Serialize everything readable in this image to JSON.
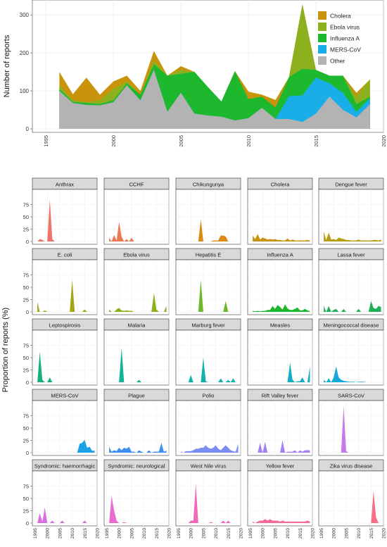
{
  "top_chart": {
    "ylabel": "Number of reports",
    "y_ticks": [
      0,
      100,
      200,
      300
    ],
    "x_ticks": [
      1995,
      2000,
      2005,
      2010,
      2015,
      2020
    ],
    "legend": [
      {
        "name": "Cholera",
        "color": "#C9940C"
      },
      {
        "name": "Ebola virus",
        "color": "#8DB01E"
      },
      {
        "name": "Influenza A",
        "color": "#1DB82E"
      },
      {
        "name": "MERS-CoV",
        "color": "#1AAEE8"
      },
      {
        "name": "Other",
        "color": "#B3B3B3"
      }
    ]
  },
  "facets": {
    "ylabel": "Proportion of reports (%)",
    "y_ticks": [
      0,
      25,
      50,
      75
    ],
    "x_ticks": [
      1995,
      2000,
      2005,
      2010,
      2015,
      2020
    ]
  },
  "chart_data": [
    {
      "type": "area",
      "stacked": true,
      "x": [
        1996,
        1997,
        1998,
        1999,
        2000,
        2001,
        2002,
        2003,
        2004,
        2005,
        2006,
        2007,
        2008,
        2009,
        2010,
        2011,
        2012,
        2013,
        2014,
        2015,
        2016,
        2017,
        2018,
        2019
      ],
      "xlim": [
        1994,
        2020
      ],
      "ylim": [
        0,
        330
      ],
      "ylabel": "Number of reports",
      "series": [
        {
          "name": "Other",
          "values": [
            100,
            68,
            63,
            62,
            70,
            115,
            75,
            155,
            45,
            95,
            40,
            35,
            32,
            22,
            28,
            55,
            26,
            26,
            18,
            40,
            85,
            50,
            30,
            65
          ]
        },
        {
          "name": "MERS-CoV",
          "values": [
            0,
            0,
            0,
            0,
            0,
            0,
            0,
            0,
            0,
            0,
            0,
            0,
            0,
            0,
            0,
            0,
            0,
            60,
            70,
            95,
            35,
            45,
            15,
            15
          ]
        },
        {
          "name": "Influenza A",
          "values": [
            5,
            3,
            5,
            3,
            5,
            5,
            15,
            15,
            95,
            50,
            110,
            75,
            40,
            130,
            50,
            30,
            30,
            50,
            70,
            20,
            20,
            45,
            20,
            5
          ]
        },
        {
          "name": "Ebola virus",
          "values": [
            10,
            5,
            2,
            10,
            30,
            5,
            0,
            10,
            0,
            10,
            0,
            0,
            0,
            0,
            0,
            0,
            0,
            0,
            170,
            0,
            0,
            0,
            20,
            45
          ]
        },
        {
          "name": "Cholera",
          "values": [
            35,
            15,
            65,
            15,
            20,
            15,
            10,
            25,
            0,
            10,
            0,
            0,
            0,
            0,
            20,
            5,
            20,
            0,
            0,
            0,
            0,
            0,
            10,
            0
          ]
        }
      ],
      "legend_position": "top-right"
    },
    {
      "type": "area",
      "facets": [
        {
          "title": "Anthrax",
          "color": "#F0736B",
          "values": [
            0,
            5,
            3,
            0,
            0,
            85,
            5,
            0,
            0,
            0,
            0,
            0,
            0,
            0,
            0,
            0,
            0,
            0,
            0,
            0,
            0,
            0,
            0,
            0
          ]
        },
        {
          "title": "CCHF",
          "color": "#EE7A55",
          "values": [
            8,
            0,
            13,
            2,
            40,
            10,
            0,
            5,
            0,
            8,
            0,
            0,
            0,
            0,
            0,
            0,
            0,
            0,
            0,
            0,
            0,
            0,
            0,
            0
          ]
        },
        {
          "title": "Chikungunya",
          "color": "#DA8A10",
          "values": [
            0,
            0,
            0,
            0,
            0,
            0,
            0,
            0,
            45,
            0,
            0,
            0,
            0,
            2,
            2,
            2,
            12,
            12,
            10,
            0,
            0,
            0,
            0,
            0
          ]
        },
        {
          "title": "Cholera",
          "color": "#C9940C",
          "values": [
            12,
            5,
            15,
            4,
            8,
            6,
            4,
            5,
            4,
            5,
            3,
            3,
            2,
            2,
            6,
            2,
            4,
            2,
            2,
            2,
            2,
            2,
            3,
            2
          ]
        },
        {
          "title": "Dengue fever",
          "color": "#B79E12",
          "values": [
            20,
            3,
            18,
            4,
            5,
            3,
            8,
            6,
            5,
            3,
            3,
            2,
            2,
            2,
            4,
            2,
            2,
            2,
            2,
            2,
            3,
            3,
            2,
            4
          ]
        },
        {
          "title": "E. coli",
          "color": "#A5A616",
          "values": [
            20,
            0,
            0,
            3,
            0,
            0,
            0,
            0,
            0,
            0,
            0,
            0,
            0,
            0,
            65,
            0,
            0,
            0,
            0,
            5,
            0,
            0,
            0,
            0
          ]
        },
        {
          "title": "Ebola virus",
          "color": "#8DB01E",
          "values": [
            5,
            0,
            0,
            5,
            8,
            3,
            2,
            3,
            2,
            2,
            0,
            0,
            0,
            0,
            0,
            0,
            0,
            0,
            38,
            5,
            0,
            0,
            0,
            12
          ]
        },
        {
          "title": "Hepatitis E",
          "color": "#6DB82A",
          "values": [
            0,
            0,
            0,
            0,
            0,
            0,
            0,
            0,
            65,
            0,
            0,
            0,
            0,
            0,
            0,
            0,
            0,
            0,
            22,
            0,
            0,
            0,
            0,
            0
          ]
        },
        {
          "title": "Influenza A",
          "color": "#1DB82E",
          "values": [
            2,
            1,
            2,
            1,
            2,
            2,
            4,
            4,
            12,
            6,
            14,
            10,
            5,
            15,
            7,
            4,
            4,
            6,
            9,
            3,
            3,
            6,
            3,
            1
          ]
        },
        {
          "title": "Lassa fever",
          "color": "#20B05A",
          "values": [
            12,
            0,
            12,
            0,
            4,
            6,
            0,
            0,
            6,
            0,
            0,
            0,
            0,
            0,
            6,
            0,
            0,
            0,
            0,
            22,
            8,
            6,
            12,
            10
          ]
        },
        {
          "title": "Leptospirosis",
          "color": "#15B37A",
          "values": [
            0,
            62,
            5,
            0,
            0,
            10,
            0,
            0,
            0,
            0,
            0,
            0,
            0,
            0,
            0,
            0,
            0,
            0,
            0,
            0,
            0,
            0,
            0,
            0
          ]
        },
        {
          "title": "Malaria",
          "color": "#12B396",
          "values": [
            0,
            0,
            0,
            0,
            0,
            70,
            0,
            0,
            0,
            0,
            0,
            0,
            5,
            0,
            0,
            0,
            0,
            0,
            0,
            0,
            0,
            0,
            0,
            0
          ]
        },
        {
          "title": "Marburg fever",
          "color": "#10B2AE",
          "values": [
            0,
            0,
            0,
            0,
            15,
            0,
            0,
            0,
            0,
            50,
            2,
            0,
            0,
            0,
            0,
            0,
            8,
            0,
            0,
            5,
            0,
            8,
            0,
            0
          ]
        },
        {
          "title": "Measles",
          "color": "#13AEC6",
          "values": [
            0,
            0,
            0,
            0,
            0,
            0,
            0,
            0,
            0,
            0,
            0,
            0,
            0,
            0,
            0,
            40,
            5,
            0,
            2,
            2,
            10,
            0,
            0,
            32
          ]
        },
        {
          "title": "Meningococcal disease",
          "color": "#16A8DA",
          "values": [
            5,
            0,
            8,
            0,
            10,
            32,
            10,
            5,
            3,
            2,
            1,
            1,
            1,
            0,
            1,
            1,
            1,
            0,
            0,
            0,
            0,
            0,
            0,
            0
          ]
        },
        {
          "title": "MERS-CoV",
          "color": "#1AA1E8",
          "values": [
            0,
            0,
            0,
            0,
            0,
            0,
            0,
            0,
            0,
            0,
            0,
            0,
            0,
            0,
            0,
            0,
            0,
            18,
            20,
            26,
            10,
            12,
            4,
            4
          ]
        },
        {
          "title": "Plague",
          "color": "#3D8FF0",
          "values": [
            12,
            2,
            5,
            3,
            10,
            5,
            10,
            8,
            12,
            2,
            2,
            0,
            5,
            2,
            0,
            0,
            5,
            0,
            2,
            2,
            2,
            20,
            2,
            4
          ]
        },
        {
          "title": "Polio",
          "color": "#7B8CF3",
          "values": [
            2,
            0,
            3,
            3,
            3,
            5,
            8,
            8,
            10,
            10,
            15,
            10,
            8,
            10,
            15,
            8,
            5,
            10,
            15,
            10,
            5,
            3,
            2,
            18
          ]
        },
        {
          "title": "Rift Valley fever",
          "color": "#A582F2",
          "values": [
            0,
            0,
            0,
            20,
            0,
            22,
            0,
            0,
            0,
            0,
            0,
            0,
            25,
            0,
            2,
            2,
            2,
            5,
            0,
            5,
            2,
            5,
            5,
            5
          ]
        },
        {
          "title": "SARS-CoV",
          "color": "#C779EC",
          "values": [
            0,
            0,
            0,
            0,
            0,
            0,
            0,
            0,
            95,
            3,
            0,
            0,
            0,
            0,
            0,
            0,
            0,
            0,
            0,
            0,
            0,
            0,
            0,
            0
          ]
        },
        {
          "title": "Syndromic: haemorrhagic",
          "color": "#DC6FE0",
          "values": [
            0,
            20,
            3,
            32,
            0,
            0,
            5,
            0,
            0,
            0,
            5,
            0,
            0,
            0,
            0,
            0,
            0,
            0,
            0,
            5,
            0,
            0,
            0,
            0
          ]
        },
        {
          "title": "Syndromic: neurological",
          "color": "#EA6AD0",
          "values": [
            0,
            55,
            25,
            5,
            0,
            0,
            2,
            0,
            0,
            0,
            0,
            0,
            0,
            0,
            0,
            0,
            0,
            0,
            0,
            0,
            0,
            0,
            0,
            0
          ]
        },
        {
          "title": "West Nile virus",
          "color": "#F267B8",
          "values": [
            0,
            0,
            0,
            0,
            5,
            5,
            80,
            0,
            0,
            0,
            0,
            0,
            2,
            0,
            0,
            0,
            0,
            5,
            0,
            5,
            0,
            0,
            0,
            0
          ]
        },
        {
          "title": "Yellow fever",
          "color": "#F56C9C",
          "values": [
            3,
            0,
            3,
            5,
            5,
            8,
            5,
            8,
            5,
            5,
            5,
            3,
            5,
            3,
            3,
            3,
            3,
            3,
            3,
            3,
            3,
            3,
            5,
            3
          ]
        },
        {
          "title": "Zika virus disease",
          "color": "#F57086",
          "values": [
            0,
            0,
            0,
            0,
            0,
            0,
            0,
            0,
            0,
            0,
            0,
            0,
            0,
            0,
            0,
            0,
            0,
            0,
            0,
            0,
            65,
            12,
            0,
            0
          ]
        }
      ],
      "x": [
        1996,
        1997,
        1998,
        1999,
        2000,
        2001,
        2002,
        2003,
        2004,
        2005,
        2006,
        2007,
        2008,
        2009,
        2010,
        2011,
        2012,
        2013,
        2014,
        2015,
        2016,
        2017,
        2018,
        2019
      ],
      "xlim": [
        1994,
        2020
      ],
      "ylim": [
        0,
        100
      ],
      "ylabel": "Proportion of reports (%)"
    }
  ]
}
